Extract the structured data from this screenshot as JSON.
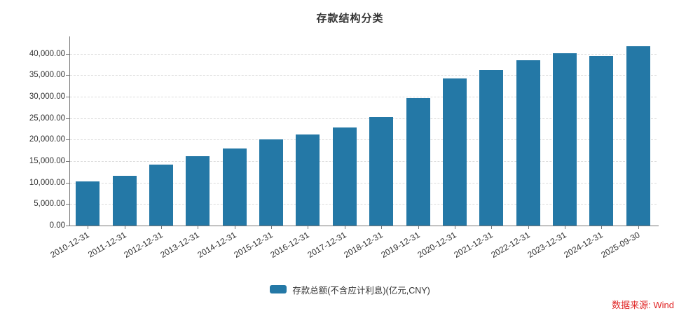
{
  "title": "存款结构分类",
  "source": "数据来源: Wind",
  "legend": {
    "label": "存款总额(不含应计利息)(亿元,CNY)"
  },
  "colors": {
    "bar": "#2478a6",
    "grid": "#dcdcdc",
    "axis": "#767676",
    "text": "#333333",
    "source_text": "#e02424"
  },
  "y_axis": {
    "tick_labels": [
      "0.00",
      "5,000.00",
      "10,000.00",
      "15,000.00",
      "20,000.00",
      "25,000.00",
      "30,000.00",
      "35,000.00",
      "40,000.00"
    ]
  },
  "chart_data": {
    "type": "bar",
    "title": "存款结构分类",
    "categories": [
      "2010-12-31",
      "2011-12-31",
      "2012-12-31",
      "2013-12-31",
      "2014-12-31",
      "2015-12-31",
      "2016-12-31",
      "2017-12-31",
      "2018-12-31",
      "2019-12-31",
      "2020-12-31",
      "2021-12-31",
      "2022-12-31",
      "2023-12-31",
      "2024-12-31",
      "2025-09-30"
    ],
    "series": [
      {
        "name": "存款总额(不含应计利息)(亿元,CNY)",
        "values": [
          10200,
          11600,
          14200,
          16100,
          17900,
          20000,
          21200,
          22800,
          25300,
          29700,
          34300,
          36200,
          38400,
          40100,
          39500,
          41700
        ]
      }
    ],
    "xlabel": "",
    "ylabel": "亿元, CNY",
    "ylim": [
      0,
      44000
    ],
    "yticks": [
      0,
      5000,
      10000,
      15000,
      20000,
      25000,
      30000,
      35000,
      40000
    ],
    "grid": "horizontal-dashed",
    "legend_position": "bottom-center",
    "x_label_rotation": -30
  }
}
